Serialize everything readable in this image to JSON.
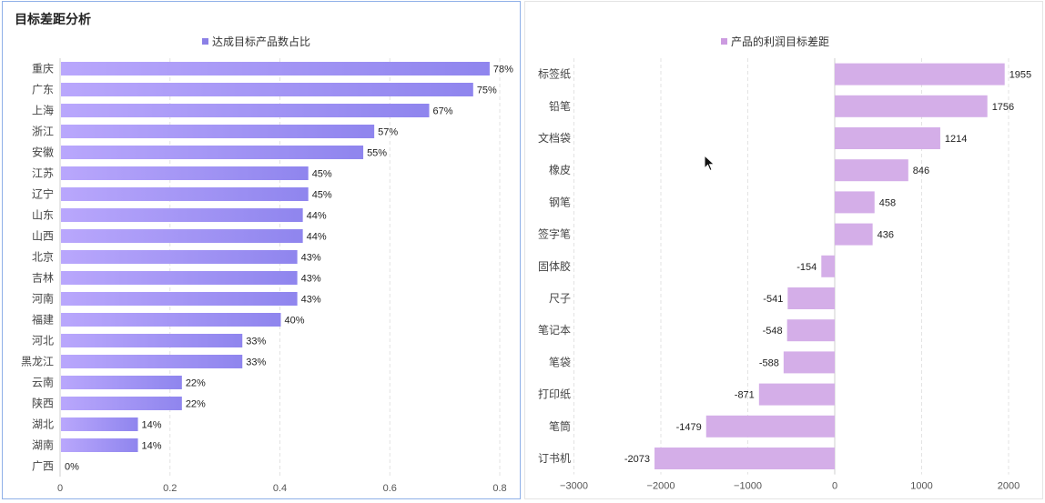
{
  "left": {
    "title": "目标差距分析",
    "chart_data": {
      "type": "bar",
      "orientation": "horizontal",
      "title": "",
      "legend": "达成目标产品数占比",
      "legend_position": "top-center",
      "categories": [
        "重庆",
        "广东",
        "上海",
        "浙江",
        "安徽",
        "江苏",
        "辽宁",
        "山东",
        "山西",
        "北京",
        "吉林",
        "河南",
        "福建",
        "河北",
        "黑龙江",
        "云南",
        "陕西",
        "湖北",
        "湖南",
        "广西"
      ],
      "values": [
        0.78,
        0.75,
        0.67,
        0.57,
        0.55,
        0.45,
        0.45,
        0.44,
        0.44,
        0.43,
        0.43,
        0.43,
        0.4,
        0.33,
        0.33,
        0.22,
        0.22,
        0.14,
        0.14,
        0
      ],
      "labels": [
        "78%",
        "75%",
        "67%",
        "57%",
        "55%",
        "45%",
        "45%",
        "44%",
        "44%",
        "43%",
        "43%",
        "43%",
        "40%",
        "33%",
        "33%",
        "22%",
        "22%",
        "14%",
        "14%",
        "0%"
      ],
      "xlim": [
        0,
        0.8
      ],
      "xticks": [
        "0",
        "0.2",
        "0.4",
        "0.6",
        "0.8"
      ],
      "grid": "vertical dashed",
      "colors": {
        "bar_start": "#b8a6fb",
        "bar_end": "#8f85ee",
        "legend": "#8b80e6"
      }
    }
  },
  "right": {
    "chart_data": {
      "type": "bar",
      "orientation": "horizontal",
      "title": "",
      "legend": "产品的利润目标差距",
      "legend_position": "top-center",
      "categories": [
        "标签纸",
        "铅笔",
        "文档袋",
        "橡皮",
        "钢笔",
        "签字笔",
        "固体胶",
        "尺子",
        "笔记本",
        "笔袋",
        "打印纸",
        "笔筒",
        "订书机"
      ],
      "values": [
        1955,
        1756,
        1214,
        846,
        458,
        436,
        -154,
        -541,
        -548,
        -588,
        -871,
        -1479,
        -2073
      ],
      "labels": [
        "1955",
        "1756",
        "1214",
        "846",
        "458",
        "436",
        "-154",
        "-541",
        "-548",
        "-588",
        "-871",
        "-1479",
        "-2073"
      ],
      "xlim": [
        -3000,
        2300
      ],
      "xticks": [
        "−3000",
        "−2000",
        "−1000",
        "0",
        "1000",
        "2000"
      ],
      "xtick_values": [
        -3000,
        -2000,
        -1000,
        0,
        1000,
        2000
      ],
      "grid": "vertical dashed",
      "colors": {
        "bar": "#d4aee8",
        "legend": "#cc9be0"
      }
    }
  }
}
